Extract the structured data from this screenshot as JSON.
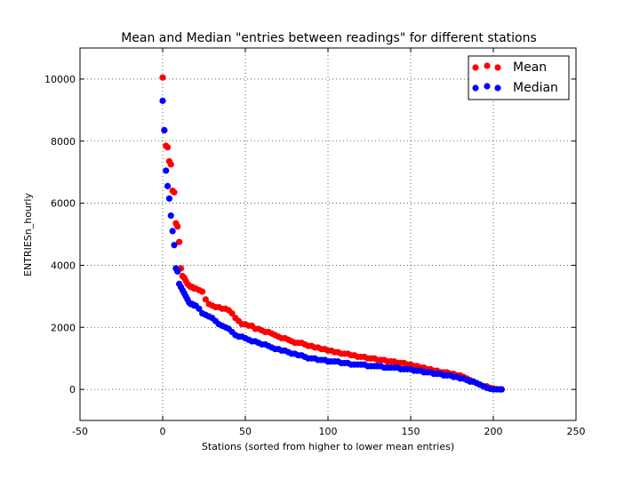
{
  "chart_data": {
    "type": "scatter",
    "title": "Mean and Median \"entries between readings\" for different stations",
    "xlabel": "Stations (sorted from higher to lower mean entries)",
    "ylabel": "ENTRIESn_hourly",
    "xlim": [
      -50,
      250
    ],
    "ylim": [
      -1000,
      11000
    ],
    "xticks": [
      -50,
      0,
      50,
      100,
      150,
      200,
      250
    ],
    "yticks": [
      0,
      2000,
      4000,
      6000,
      8000,
      10000
    ],
    "grid": true,
    "legend_position": "top-right",
    "series": [
      {
        "name": "Mean",
        "color": "#ff0000",
        "x": [
          0,
          1,
          2,
          3,
          4,
          5,
          6,
          7,
          8,
          9,
          10,
          11,
          12,
          13,
          14,
          15,
          16,
          17,
          18,
          19,
          20,
          22,
          24,
          26,
          28,
          30,
          32,
          34,
          36,
          38,
          40,
          42,
          44,
          46,
          48,
          50,
          52,
          54,
          56,
          58,
          60,
          62,
          64,
          66,
          68,
          70,
          72,
          74,
          76,
          78,
          80,
          82,
          84,
          86,
          88,
          90,
          92,
          94,
          96,
          98,
          100,
          102,
          104,
          106,
          108,
          110,
          112,
          114,
          116,
          118,
          120,
          122,
          124,
          126,
          128,
          130,
          132,
          134,
          136,
          138,
          140,
          142,
          144,
          146,
          148,
          150,
          152,
          154,
          156,
          158,
          160,
          162,
          164,
          166,
          168,
          170,
          172,
          174,
          176,
          178,
          180,
          182,
          184,
          186,
          188,
          190,
          192,
          194,
          196,
          198,
          200,
          202,
          204,
          205
        ],
        "y": [
          10050,
          8350,
          7850,
          7800,
          7350,
          7250,
          6400,
          6350,
          5350,
          5250,
          4750,
          3900,
          3650,
          3600,
          3500,
          3400,
          3350,
          3300,
          3300,
          3250,
          3250,
          3200,
          3150,
          2900,
          2750,
          2700,
          2650,
          2650,
          2600,
          2600,
          2550,
          2450,
          2300,
          2200,
          2100,
          2100,
          2050,
          2050,
          1950,
          1950,
          1900,
          1850,
          1850,
          1800,
          1750,
          1700,
          1650,
          1650,
          1600,
          1550,
          1500,
          1500,
          1500,
          1450,
          1400,
          1400,
          1350,
          1350,
          1300,
          1300,
          1250,
          1250,
          1200,
          1200,
          1150,
          1150,
          1150,
          1100,
          1100,
          1050,
          1050,
          1050,
          1000,
          1000,
          1000,
          950,
          950,
          950,
          900,
          900,
          900,
          850,
          850,
          850,
          800,
          800,
          750,
          750,
          700,
          700,
          650,
          650,
          600,
          600,
          550,
          550,
          550,
          500,
          500,
          450,
          450,
          400,
          350,
          300,
          250,
          200,
          150,
          100,
          100,
          50,
          30,
          10,
          0,
          0
        ]
      },
      {
        "name": "Median",
        "color": "#0000ff",
        "x": [
          0,
          1,
          2,
          3,
          4,
          5,
          6,
          7,
          8,
          9,
          10,
          11,
          12,
          13,
          14,
          15,
          16,
          17,
          18,
          19,
          20,
          22,
          24,
          26,
          28,
          30,
          32,
          34,
          36,
          38,
          40,
          42,
          44,
          46,
          48,
          50,
          52,
          54,
          56,
          58,
          60,
          62,
          64,
          66,
          68,
          70,
          72,
          74,
          76,
          78,
          80,
          82,
          84,
          86,
          88,
          90,
          92,
          94,
          96,
          98,
          100,
          102,
          104,
          106,
          108,
          110,
          112,
          114,
          116,
          118,
          120,
          122,
          124,
          126,
          128,
          130,
          132,
          134,
          136,
          138,
          140,
          142,
          144,
          146,
          148,
          150,
          152,
          154,
          156,
          158,
          160,
          162,
          164,
          166,
          168,
          170,
          172,
          174,
          176,
          178,
          180,
          182,
          184,
          186,
          188,
          190,
          192,
          194,
          196,
          198,
          200,
          202,
          204,
          205
        ],
        "y": [
          9300,
          8350,
          7050,
          6550,
          6150,
          5600,
          5100,
          4650,
          3900,
          3800,
          3400,
          3300,
          3200,
          3100,
          3000,
          2900,
          2800,
          2750,
          2750,
          2700,
          2700,
          2600,
          2450,
          2400,
          2350,
          2300,
          2200,
          2100,
          2050,
          2000,
          1950,
          1850,
          1750,
          1700,
          1700,
          1650,
          1600,
          1550,
          1550,
          1500,
          1450,
          1450,
          1400,
          1350,
          1300,
          1300,
          1250,
          1250,
          1200,
          1150,
          1150,
          1100,
          1100,
          1050,
          1000,
          1000,
          1000,
          950,
          950,
          950,
          900,
          900,
          900,
          900,
          850,
          850,
          850,
          800,
          800,
          800,
          800,
          800,
          750,
          750,
          750,
          750,
          750,
          700,
          700,
          700,
          700,
          700,
          650,
          650,
          650,
          650,
          600,
          600,
          600,
          550,
          550,
          550,
          500,
          500,
          500,
          450,
          450,
          450,
          400,
          400,
          350,
          350,
          300,
          250,
          250,
          200,
          150,
          100,
          50,
          20,
          0,
          0,
          0,
          0
        ]
      }
    ]
  }
}
